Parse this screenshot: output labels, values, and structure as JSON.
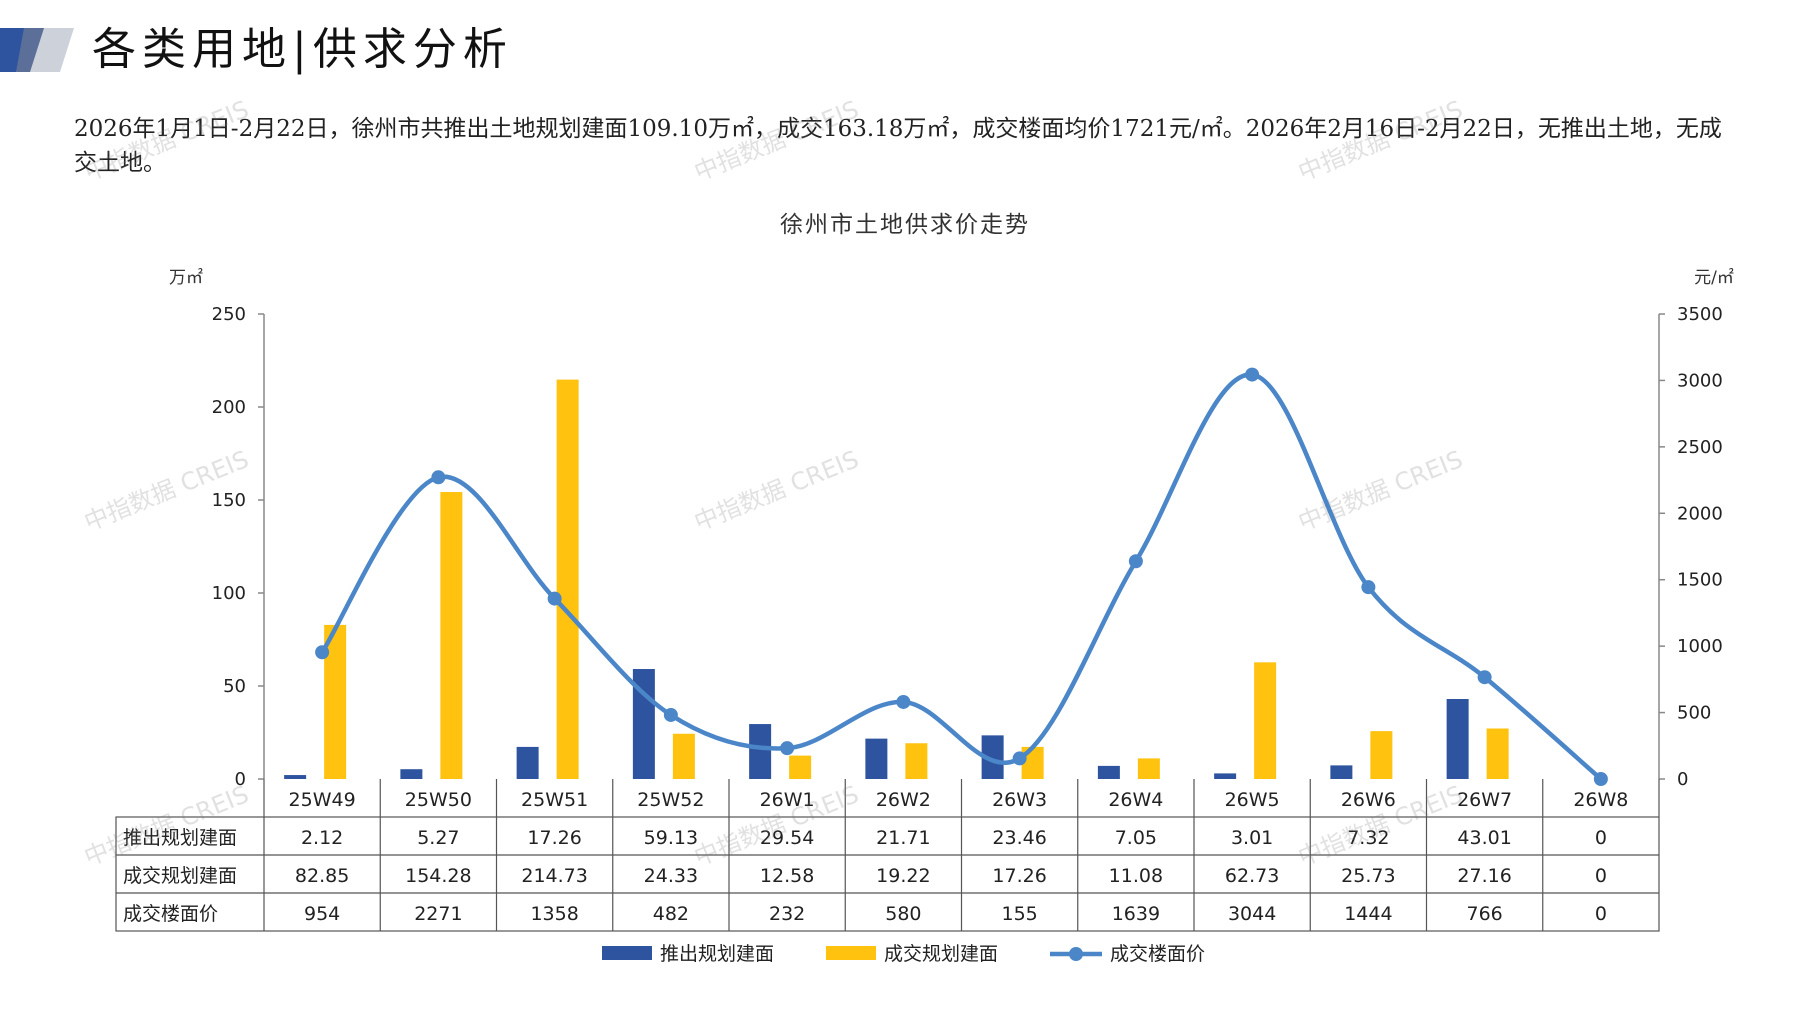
{
  "header": {
    "title": "各类用地|供求分析",
    "summary": "2026年1月1日-2月22日，徐州市共推出土地规划建面109.10万㎡，成交163.18万㎡，成交楼面均价1721元/㎡。2026年2月16日-2月22日，无推出土地，无成交土地。"
  },
  "watermark_text": "中指数据 CREIS",
  "colors": {
    "supply_bar": "#2E54A0",
    "deal_bar": "#FFC20E",
    "price_line": "#4A86C8",
    "logo_dark": "#2E54A0",
    "logo_light": "#C7CCD6"
  },
  "chart_data": {
    "type": "bar",
    "title": "徐州市土地供求价走势",
    "y_left_unit": "万㎡",
    "y_right_unit": "元/㎡",
    "ylim_left": [
      0,
      250
    ],
    "yticks_left": [
      0,
      50,
      100,
      150,
      200,
      250
    ],
    "ylim_right": [
      0,
      3500
    ],
    "yticks_right": [
      0,
      500,
      1000,
      1500,
      2000,
      2500,
      3000,
      3500
    ],
    "categories": [
      "25W49",
      "25W50",
      "25W51",
      "25W52",
      "26W1",
      "26W2",
      "26W3",
      "26W4",
      "26W5",
      "26W6",
      "26W7",
      "26W8"
    ],
    "series": [
      {
        "name": "推出规划建面",
        "type": "bar",
        "axis": "left",
        "values": [
          2.12,
          5.27,
          17.26,
          59.13,
          29.54,
          21.71,
          23.46,
          7.05,
          3.01,
          7.32,
          43.01,
          0
        ],
        "labels": [
          "2.12",
          "5.27",
          "17.26",
          "59.13",
          "29.54",
          "21.71",
          "23.46",
          "7.05",
          "3.01",
          "7.32",
          "43.01",
          "0"
        ]
      },
      {
        "name": "成交规划建面",
        "type": "bar",
        "axis": "left",
        "values": [
          82.85,
          154.28,
          214.73,
          24.33,
          12.58,
          19.22,
          17.26,
          11.08,
          62.73,
          25.73,
          27.16,
          0
        ],
        "labels": [
          "82.85",
          "154.28",
          "214.73",
          "24.33",
          "12.58",
          "19.22",
          "17.26",
          "11.08",
          "62.73",
          "25.73",
          "27.16",
          "0"
        ]
      },
      {
        "name": "成交楼面价",
        "type": "line",
        "axis": "right",
        "values": [
          954,
          2271,
          1358,
          482,
          232,
          580,
          155,
          1639,
          3044,
          1444,
          766,
          0
        ],
        "labels": [
          "954",
          "2271",
          "1358",
          "482",
          "232",
          "580",
          "155",
          "1639",
          "3044",
          "1444",
          "766",
          "0"
        ]
      }
    ],
    "legend_position": "bottom",
    "grid": false,
    "data_table": true
  }
}
